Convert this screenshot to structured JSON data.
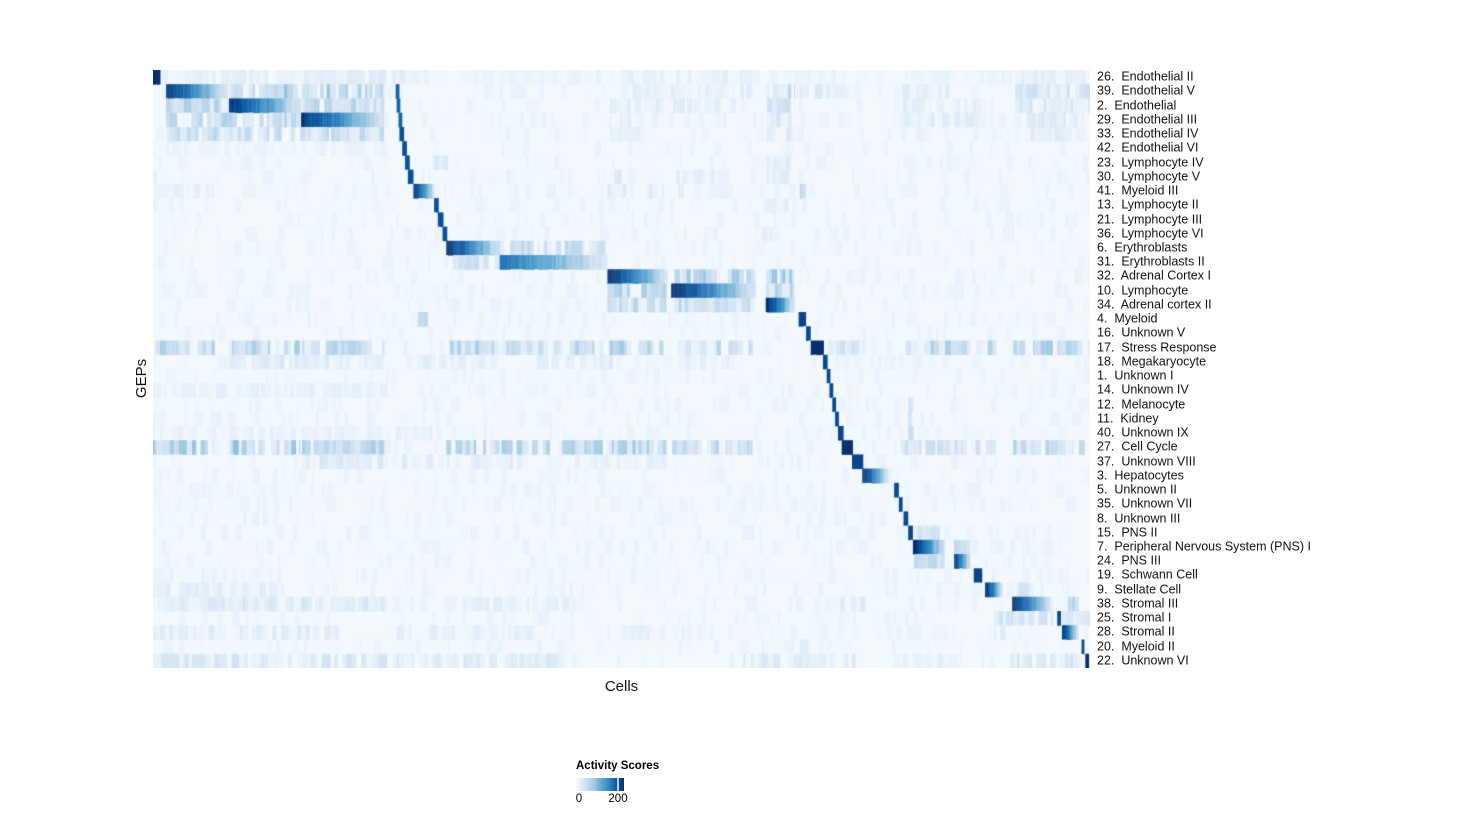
{
  "chart_data": {
    "type": "heatmap",
    "title": "",
    "xlabel": "Cells",
    "ylabel": "GEPs",
    "legend_position": "bottom-left",
    "grid": false,
    "colorbar": {
      "title": "Activity Scores",
      "tick_labels": [
        "0",
        "200"
      ],
      "ticks": [
        0,
        200
      ],
      "value_range": [
        0,
        235
      ]
    },
    "colormap_name": "Blues",
    "colormap_stops": [
      "#f7fbff",
      "#deebf7",
      "#c6dbef",
      "#9ecae1",
      "#6baed6",
      "#4292c6",
      "#2171b5",
      "#08519c",
      "#08306b"
    ],
    "background_value_color": "#f3f8fd",
    "rows": [
      {
        "label": "26.  Endothelial II",
        "blocks": [
          [
            0.0,
            0.008,
            1.0,
            "solid"
          ]
        ],
        "bands": [
          [
            0.01,
            0.3,
            0.1
          ],
          [
            0.33,
            0.49,
            0.06
          ],
          [
            0.5,
            0.64,
            0.08
          ],
          [
            0.66,
            0.74,
            0.06
          ],
          [
            0.8,
            0.87,
            0.06
          ],
          [
            0.88,
            1.0,
            0.08
          ]
        ]
      },
      {
        "label": "39.  Endothelial V",
        "blocks": [
          [
            0.014,
            0.08,
            0.95,
            "fade"
          ],
          [
            0.259,
            0.263,
            0.8,
            "solid"
          ]
        ],
        "bands": [
          [
            0.082,
            0.157,
            0.32
          ],
          [
            0.159,
            0.247,
            0.28
          ],
          [
            0.5,
            0.64,
            0.1
          ],
          [
            0.655,
            0.685,
            0.22
          ],
          [
            0.69,
            0.75,
            0.12
          ],
          [
            0.8,
            0.85,
            0.12
          ],
          [
            0.92,
            1.0,
            0.18
          ]
        ]
      },
      {
        "label": "2.  Endothelial",
        "blocks": [
          [
            0.081,
            0.157,
            0.95,
            "fade"
          ],
          [
            0.26,
            0.264,
            0.8,
            "solid"
          ]
        ],
        "bands": [
          [
            0.014,
            0.08,
            0.25
          ],
          [
            0.159,
            0.247,
            0.25
          ],
          [
            0.488,
            0.545,
            0.12
          ],
          [
            0.555,
            0.63,
            0.1
          ],
          [
            0.655,
            0.685,
            0.18
          ],
          [
            0.8,
            0.89,
            0.1
          ],
          [
            0.92,
            1.0,
            0.14
          ]
        ]
      },
      {
        "label": "29.  Endothelial III",
        "blocks": [
          [
            0.158,
            0.247,
            0.95,
            "fade"
          ],
          [
            0.262,
            0.266,
            0.8,
            "solid"
          ]
        ],
        "bands": [
          [
            0.014,
            0.157,
            0.25
          ],
          [
            0.488,
            0.545,
            0.1
          ],
          [
            0.655,
            0.685,
            0.15
          ],
          [
            0.8,
            0.89,
            0.1
          ],
          [
            0.92,
            1.0,
            0.12
          ]
        ]
      },
      {
        "label": "33.  Endothelial IV",
        "blocks": [
          [
            0.263,
            0.268,
            0.88,
            "solid"
          ]
        ],
        "bands": [
          [
            0.014,
            0.247,
            0.2
          ],
          [
            0.488,
            0.52,
            0.08
          ],
          [
            0.655,
            0.685,
            0.12
          ],
          [
            0.92,
            0.98,
            0.1
          ]
        ]
      },
      {
        "label": "42.  Endothelial VI",
        "blocks": [
          [
            0.266,
            0.271,
            0.88,
            "solid"
          ]
        ],
        "bands": [
          [
            0.02,
            0.24,
            0.06
          ]
        ]
      },
      {
        "label": "23.  Lymphocyte IV",
        "blocks": [
          [
            0.269,
            0.274,
            0.88,
            "solid"
          ]
        ],
        "bands": [
          [
            0.3,
            0.315,
            0.15
          ],
          [
            0.655,
            0.68,
            0.1
          ]
        ]
      },
      {
        "label": "30.  Lymphocyte V",
        "blocks": [
          [
            0.272,
            0.278,
            0.88,
            "solid"
          ]
        ],
        "bands": [
          [
            0.487,
            0.5,
            0.12
          ],
          [
            0.555,
            0.6,
            0.1
          ],
          [
            0.655,
            0.68,
            0.1
          ]
        ]
      },
      {
        "label": "41.  Myeloid III",
        "blocks": [
          [
            0.278,
            0.3,
            1.0,
            "fade"
          ]
        ],
        "bands": [
          [
            0.0,
            0.065,
            0.08
          ],
          [
            0.48,
            0.545,
            0.1
          ],
          [
            0.555,
            0.62,
            0.08
          ],
          [
            0.69,
            0.697,
            0.3
          ]
        ]
      },
      {
        "label": "13.  Lymphocyte II",
        "blocks": [
          [
            0.3,
            0.305,
            0.88,
            "solid"
          ]
        ],
        "bands": [
          [
            0.655,
            0.68,
            0.1
          ]
        ]
      },
      {
        "label": "21.  Lymphocyte III",
        "blocks": [
          [
            0.304,
            0.31,
            0.88,
            "solid"
          ]
        ],
        "bands": []
      },
      {
        "label": "36.  Lymphocyte VI",
        "blocks": [
          [
            0.309,
            0.314,
            0.88,
            "solid"
          ]
        ],
        "bands": [
          [
            0.65,
            0.66,
            0.25
          ]
        ]
      },
      {
        "label": "6.  Erythroblasts",
        "blocks": [
          [
            0.313,
            0.371,
            1.0,
            "fade"
          ]
        ],
        "bands": [
          [
            0.372,
            0.484,
            0.22
          ]
        ]
      },
      {
        "label": "31.  Erythroblasts II",
        "blocks": [
          [
            0.37,
            0.485,
            0.72,
            "fade"
          ]
        ],
        "bands": [
          [
            0.314,
            0.369,
            0.18
          ]
        ]
      },
      {
        "label": "32.  Adrenal Cortex I",
        "blocks": [
          [
            0.485,
            0.549,
            1.0,
            "fade"
          ]
        ],
        "bands": [
          [
            0.554,
            0.642,
            0.28
          ],
          [
            0.654,
            0.684,
            0.3
          ]
        ]
      },
      {
        "label": "10.  Lymphocyte",
        "blocks": [
          [
            0.553,
            0.642,
            1.0,
            "fade"
          ]
        ],
        "bands": [
          [
            0.485,
            0.548,
            0.28
          ],
          [
            0.654,
            0.684,
            0.26
          ]
        ]
      },
      {
        "label": "34.  Adrenal cortex II",
        "blocks": [
          [
            0.654,
            0.684,
            1.0,
            "fade"
          ]
        ],
        "bands": [
          [
            0.485,
            0.548,
            0.22
          ],
          [
            0.554,
            0.642,
            0.22
          ]
        ]
      },
      {
        "label": "4.  Myeloid",
        "blocks": [
          [
            0.689,
            0.697,
            0.92,
            "solid"
          ]
        ],
        "bands": [
          [
            0.278,
            0.3,
            0.22
          ]
        ]
      },
      {
        "label": "16.  Unknown V",
        "blocks": [
          [
            0.697,
            0.702,
            0.9,
            "solid"
          ]
        ],
        "bands": []
      },
      {
        "label": "17.  Stress Response",
        "blocks": [
          [
            0.702,
            0.716,
            1.0,
            "solid"
          ]
        ],
        "bands": [
          [
            0.0,
            0.066,
            0.28
          ],
          [
            0.082,
            0.157,
            0.26
          ],
          [
            0.159,
            0.247,
            0.26
          ],
          [
            0.313,
            0.37,
            0.26
          ],
          [
            0.372,
            0.48,
            0.22
          ],
          [
            0.487,
            0.545,
            0.26
          ],
          [
            0.554,
            0.64,
            0.22
          ],
          [
            0.72,
            0.76,
            0.16
          ],
          [
            0.8,
            0.9,
            0.24
          ],
          [
            0.918,
            0.96,
            0.3
          ],
          [
            0.965,
            1.0,
            0.26
          ]
        ]
      },
      {
        "label": "18.  Megakaryocyte",
        "blocks": [
          [
            0.715,
            0.72,
            0.9,
            "solid"
          ]
        ],
        "bands": [
          [
            0.082,
            0.247,
            0.12
          ],
          [
            0.28,
            0.37,
            0.1
          ],
          [
            0.41,
            0.5,
            0.1
          ],
          [
            0.56,
            0.62,
            0.08
          ]
        ]
      },
      {
        "label": "1.  Unknown I",
        "blocks": [
          [
            0.719,
            0.723,
            0.9,
            "solid"
          ]
        ],
        "bands": []
      },
      {
        "label": "14.  Unknown IV",
        "blocks": [
          [
            0.722,
            0.726,
            0.9,
            "solid"
          ]
        ],
        "bands": [
          [
            0.0,
            0.25,
            0.08
          ]
        ]
      },
      {
        "label": "12.  Melanocyte",
        "blocks": [
          [
            0.725,
            0.729,
            0.9,
            "solid"
          ]
        ],
        "bands": [
          [
            0.806,
            0.812,
            0.18
          ]
        ]
      },
      {
        "label": "11.  Kidney",
        "blocks": [
          [
            0.728,
            0.732,
            0.9,
            "solid"
          ]
        ],
        "bands": [
          [
            0.806,
            0.812,
            0.22
          ]
        ]
      },
      {
        "label": "40.  Unknown IX",
        "blocks": [
          [
            0.731,
            0.737,
            0.92,
            "solid"
          ]
        ],
        "bands": [
          [
            0.0,
            0.3,
            0.08
          ],
          [
            0.806,
            0.812,
            0.25
          ]
        ]
      },
      {
        "label": "27.  Cell Cycle",
        "blocks": [
          [
            0.735,
            0.747,
            1.0,
            "solid"
          ]
        ],
        "bands": [
          [
            0.0,
            0.066,
            0.28
          ],
          [
            0.082,
            0.157,
            0.3
          ],
          [
            0.159,
            0.247,
            0.26
          ],
          [
            0.313,
            0.37,
            0.28
          ],
          [
            0.372,
            0.48,
            0.26
          ],
          [
            0.487,
            0.55,
            0.28
          ],
          [
            0.554,
            0.64,
            0.22
          ],
          [
            0.79,
            0.9,
            0.18
          ],
          [
            0.918,
            1.0,
            0.22
          ]
        ]
      },
      {
        "label": "37.  Unknown VIII",
        "blocks": [
          [
            0.746,
            0.758,
            0.92,
            "solid"
          ]
        ],
        "bands": [
          [
            0.159,
            0.3,
            0.12
          ],
          [
            0.31,
            0.4,
            0.1
          ],
          [
            0.45,
            0.55,
            0.08
          ]
        ]
      },
      {
        "label": "3.  Hepatocytes",
        "blocks": [
          [
            0.757,
            0.784,
            1.0,
            "fade"
          ]
        ],
        "bands": []
      },
      {
        "label": "5.  Unknown II",
        "blocks": [
          [
            0.791,
            0.796,
            0.9,
            "solid"
          ]
        ],
        "bands": [
          [
            0.0,
            0.2,
            0.05
          ]
        ]
      },
      {
        "label": "35.  Unknown VII",
        "blocks": [
          [
            0.796,
            0.8,
            0.9,
            "solid"
          ]
        ],
        "bands": []
      },
      {
        "label": "8.  Unknown III",
        "blocks": [
          [
            0.801,
            0.806,
            0.9,
            "solid"
          ]
        ],
        "bands": []
      },
      {
        "label": "15.  PNS II",
        "blocks": [
          [
            0.806,
            0.811,
            0.92,
            "solid"
          ]
        ],
        "bands": [
          [
            0.812,
            0.84,
            0.15
          ]
        ]
      },
      {
        "label": "7.  Peripheral Nervous System (PNS) I",
        "blocks": [
          [
            0.811,
            0.845,
            1.0,
            "fade"
          ]
        ],
        "bands": [
          [
            0.855,
            0.872,
            0.26
          ]
        ]
      },
      {
        "label": "24.  PNS III",
        "blocks": [
          [
            0.855,
            0.872,
            0.95,
            "fade"
          ]
        ],
        "bands": [
          [
            0.812,
            0.845,
            0.22
          ]
        ]
      },
      {
        "label": "19.  Schwann Cell",
        "blocks": [
          [
            0.876,
            0.885,
            0.92,
            "solid"
          ]
        ],
        "bands": [
          [
            0.0,
            0.14,
            0.06
          ]
        ]
      },
      {
        "label": "9.  Stellate Cell",
        "blocks": [
          [
            0.888,
            0.906,
            1.0,
            "fade"
          ]
        ],
        "bands": [
          [
            0.0,
            0.14,
            0.1
          ],
          [
            0.917,
            0.95,
            0.15
          ]
        ]
      },
      {
        "label": "38.  Stromal III",
        "blocks": [
          [
            0.917,
            0.958,
            1.0,
            "fade"
          ]
        ],
        "bands": [
          [
            0.0,
            0.25,
            0.13
          ],
          [
            0.31,
            0.45,
            0.09
          ],
          [
            0.73,
            0.76,
            0.12
          ],
          [
            0.97,
            0.988,
            0.22
          ]
        ]
      },
      {
        "label": "25.  Stromal I",
        "blocks": [
          [
            0.965,
            0.969,
            0.9,
            "solid"
          ]
        ],
        "bands": [
          [
            0.897,
            0.962,
            0.16
          ],
          [
            0.97,
            1.0,
            0.12
          ]
        ]
      },
      {
        "label": "28.  Stromal II",
        "blocks": [
          [
            0.97,
            0.987,
            0.95,
            "fade"
          ]
        ],
        "bands": [
          [
            0.0,
            0.2,
            0.11
          ],
          [
            0.26,
            0.44,
            0.09
          ],
          [
            0.5,
            0.6,
            0.08
          ],
          [
            0.897,
            0.91,
            0.16
          ]
        ]
      },
      {
        "label": "20.  Myeloid II",
        "blocks": [
          [
            0.991,
            0.994,
            0.9,
            "solid"
          ]
        ],
        "bands": [
          [
            0.69,
            0.7,
            0.2
          ]
        ]
      },
      {
        "label": "22.  Unknown VI",
        "blocks": [
          [
            0.995,
            0.999,
            1.0,
            "solid"
          ]
        ],
        "bands": [
          [
            0.0,
            0.25,
            0.14
          ],
          [
            0.26,
            0.44,
            0.11
          ],
          [
            0.63,
            0.75,
            0.11
          ],
          [
            0.8,
            0.87,
            0.08
          ],
          [
            0.915,
            0.99,
            0.16
          ]
        ]
      }
    ]
  },
  "legend": {
    "title": "Activity Scores",
    "tick_labels": [
      "0",
      "200"
    ]
  }
}
